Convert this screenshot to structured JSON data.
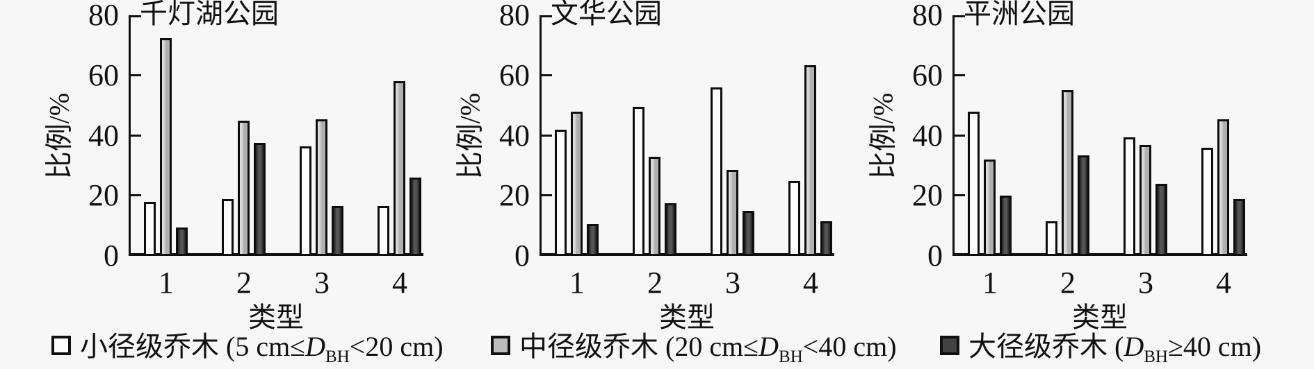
{
  "figure": {
    "background": "#f7f7f7",
    "axis_color": "#101010",
    "text_color": "#111111"
  },
  "chart_data": [
    {
      "type": "bar",
      "title": "千灯湖公园",
      "xlabel": "类型",
      "ylabel": "比例/%",
      "ylim": [
        0,
        80
      ],
      "yticks": [
        0,
        20,
        40,
        60,
        80
      ],
      "grid": false,
      "legend_position": "bottom",
      "categories": [
        "1",
        "2",
        "3",
        "4"
      ],
      "series": [
        {
          "name": "小径级乔木 (5 cm≤DBH<20 cm)",
          "color": "#fdfdfd",
          "values": [
            18,
            19,
            36.5,
            16.5
          ]
        },
        {
          "name": "中径级乔木 (20 cm≤DBH<40 cm)",
          "color": "#bcbcbc",
          "values": [
            72.5,
            45,
            45.5,
            58
          ]
        },
        {
          "name": "大径级乔木 (DBH≥40 cm)",
          "color": "#424242",
          "values": [
            9.5,
            37.5,
            16.5,
            26
          ]
        }
      ]
    },
    {
      "type": "bar",
      "title": "文华公园",
      "xlabel": "类型",
      "ylabel": "比例/%",
      "ylim": [
        0,
        80
      ],
      "yticks": [
        0,
        20,
        40,
        60,
        80
      ],
      "grid": false,
      "legend_position": "bottom",
      "categories": [
        "1",
        "2",
        "3",
        "4"
      ],
      "series": [
        {
          "name": "小径级乔木 (5 cm≤DBH<20 cm)",
          "color": "#fdfdfd",
          "values": [
            42,
            49.5,
            56,
            25
          ]
        },
        {
          "name": "中径级乔木 (20 cm≤DBH<40 cm)",
          "color": "#bcbcbc",
          "values": [
            48,
            33,
            28.5,
            63.5
          ]
        },
        {
          "name": "大径级乔木 (DBH≥40 cm)",
          "color": "#424242",
          "values": [
            10.5,
            17.5,
            15,
            11.5
          ]
        }
      ]
    },
    {
      "type": "bar",
      "title": "平洲公园",
      "xlabel": "类型",
      "ylabel": "比例/%",
      "ylim": [
        0,
        80
      ],
      "yticks": [
        0,
        20,
        40,
        60,
        80
      ],
      "grid": false,
      "legend_position": "bottom",
      "categories": [
        "1",
        "2",
        "3",
        "4"
      ],
      "series": [
        {
          "name": "小径级乔木 (5 cm≤DBH<20 cm)",
          "color": "#fdfdfd",
          "values": [
            48,
            11.5,
            39.5,
            36
          ]
        },
        {
          "name": "中径级乔木 (20 cm≤DBH<40 cm)",
          "color": "#bcbcbc",
          "values": [
            32,
            55,
            37,
            45.5
          ]
        },
        {
          "name": "大径级乔木 (DBH≥40 cm)",
          "color": "#424242",
          "values": [
            20,
            33.5,
            24,
            19
          ]
        }
      ]
    }
  ],
  "legend": {
    "items": [
      {
        "pre": "小径级乔木 (5 cm≤",
        "var": "D",
        "sub": "BH",
        "post": "<20 cm)",
        "color": "#fdfdfd"
      },
      {
        "pre": "中径级乔木 (20 cm≤",
        "var": "D",
        "sub": "BH",
        "post": "<40 cm)",
        "color": "#bcbcbc"
      },
      {
        "pre": "大径级乔木 (",
        "var": "D",
        "sub": "BH",
        "post": "≥40 cm)",
        "color": "#424242"
      }
    ]
  }
}
